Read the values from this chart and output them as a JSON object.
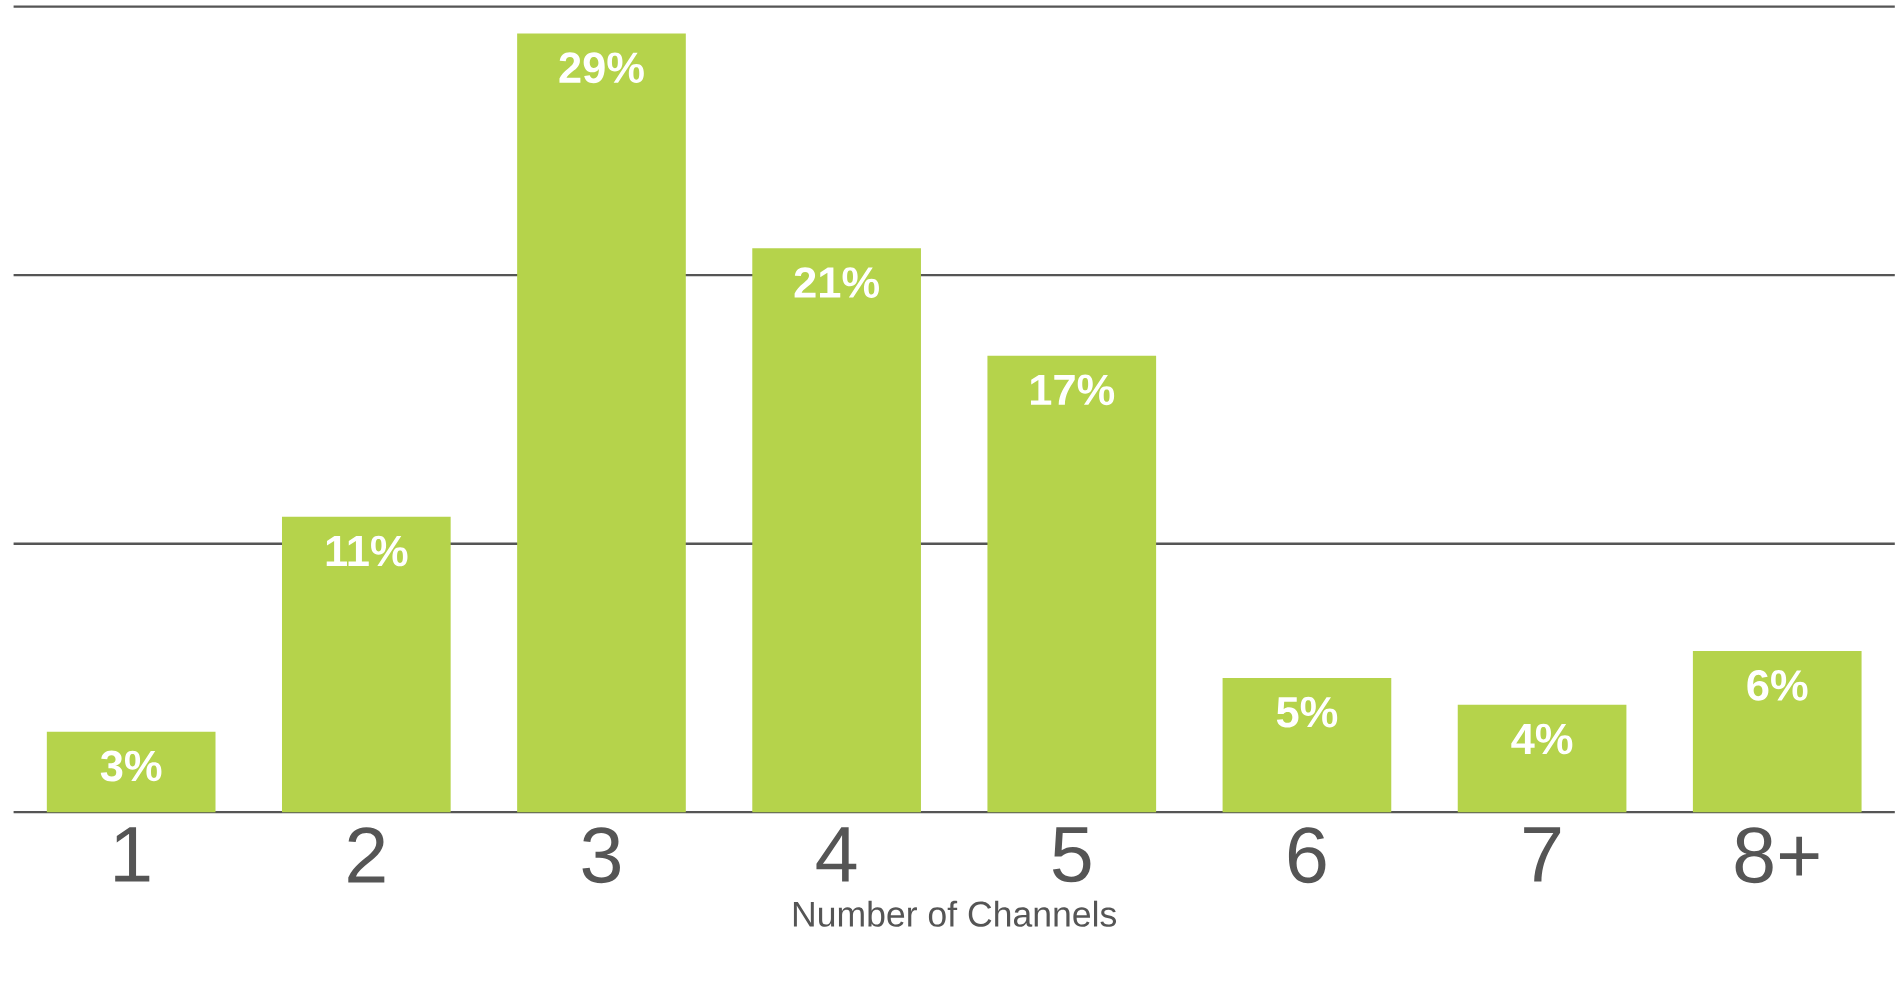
{
  "chart_data": {
    "type": "bar",
    "xlabel": "Number of Channels",
    "categories": [
      "1",
      "2",
      "3",
      "4",
      "5",
      "6",
      "7",
      "8+"
    ],
    "values": [
      3,
      11,
      29,
      21,
      17,
      5,
      4,
      6
    ],
    "value_labels": [
      "3%",
      "11%",
      "29%",
      "21%",
      "17%",
      "5%",
      "4%",
      "6%"
    ],
    "color": "#b5d34b",
    "ylim": [
      0,
      30
    ],
    "yticks": [
      {
        "value": 10,
        "label": null
      },
      {
        "value": 20,
        "label": null
      },
      {
        "value": 30,
        "label": null
      }
    ],
    "tick_labels": "x",
    "grid": "y"
  }
}
